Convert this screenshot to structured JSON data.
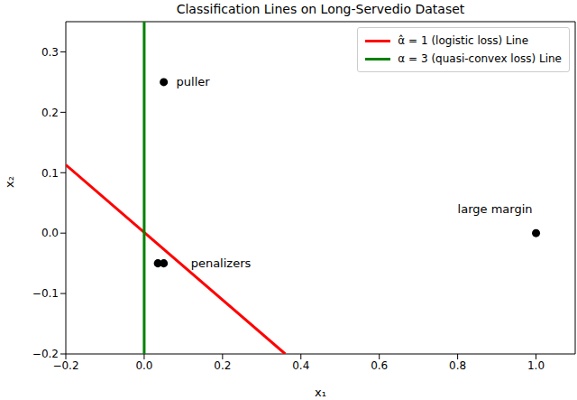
{
  "chart_data": {
    "type": "scatter",
    "title": "Classification Lines on Long-Servedio Dataset",
    "x_label": "x₁",
    "y_label": "x₂",
    "xlim": [
      -0.2,
      1.1
    ],
    "ylim": [
      -0.2,
      0.35
    ],
    "xticks": [
      {
        "value": -0.2,
        "label": "−0.2"
      },
      {
        "value": 0,
        "label": "0.0"
      },
      0.2,
      0.4,
      0.6,
      0.8,
      {
        "value": 1,
        "label": "1.0"
      }
    ],
    "yticks": [
      {
        "value": -0.2,
        "label": "−0.2"
      },
      {
        "value": -0.1,
        "label": "−0.1"
      },
      {
        "value": 0,
        "label": "0.0"
      },
      0.1,
      0.2,
      0.3
    ],
    "legend": "upper right",
    "grid": false,
    "points": {
      "color": "#000000",
      "marker": "circle",
      "x": [
        0.05,
        1.0,
        0.035,
        0.05
      ],
      "y": [
        0.25,
        0.0,
        -0.05,
        -0.05
      ]
    },
    "annotations": [
      {
        "text": "puller",
        "x": 0.082,
        "y": 0.25
      },
      {
        "text": "large margin",
        "x": 0.8,
        "y": 0.04
      },
      {
        "text": "penalizers",
        "x": 0.119,
        "y": -0.05
      }
    ],
    "series": [
      {
        "name": "α̂ = 1 (logistic loss) Line",
        "color": "#ff0000",
        "type": "line",
        "x": [
          -0.2,
          0.36
        ],
        "y": [
          0.113,
          -0.2
        ]
      },
      {
        "name": "α = 3 (quasi-convex loss) Line",
        "color": "#008000",
        "type": "line",
        "x": [
          0,
          0
        ],
        "y": [
          -0.2,
          0.35
        ]
      }
    ]
  }
}
